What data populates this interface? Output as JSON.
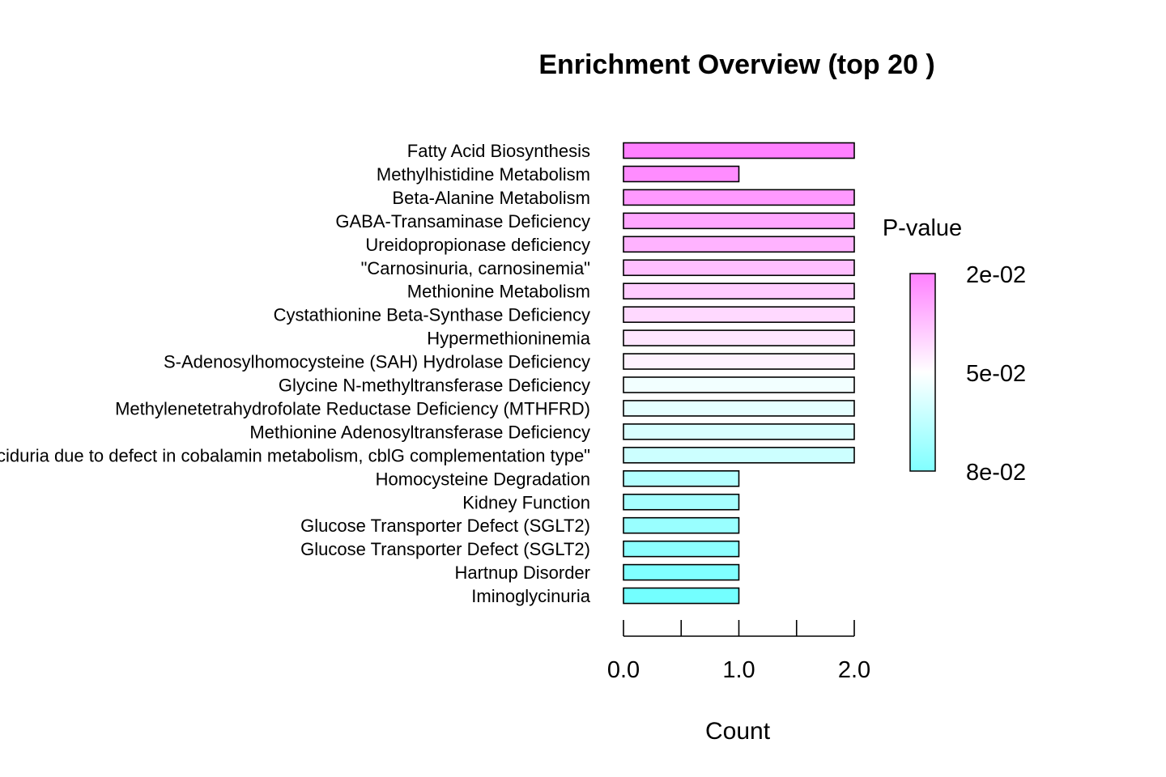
{
  "chart_data": {
    "type": "bar",
    "orientation": "horizontal",
    "title": "Enrichment Overview (top  20 )",
    "xlabel": "Count",
    "ylabel": "",
    "xlim": [
      0,
      2
    ],
    "x_ticks": [
      0,
      0.5,
      1,
      1.5,
      2
    ],
    "x_tick_labels": [
      {
        "value": 0,
        "label": "0.0"
      },
      {
        "value": 1,
        "label": "1.0"
      },
      {
        "value": 2,
        "label": "2.0"
      }
    ],
    "categories": [
      "Fatty Acid Biosynthesis",
      "Methylhistidine Metabolism",
      "Beta-Alanine Metabolism",
      "GABA-Transaminase Deficiency",
      "Ureidopropionase deficiency",
      "\"Carnosinuria, carnosinemia\"",
      "Methionine Metabolism",
      "Cystathionine Beta-Synthase Deficiency",
      "Hypermethioninemia",
      "S-Adenosylhomocysteine (SAH) Hydrolase Deficiency",
      "Glycine N-methyltransferase Deficiency",
      "Methylenetetrahydrofolate Reductase Deficiency (MTHFRD)",
      "Methionine Adenosyltransferase Deficiency",
      "\"Methylmalonic aciduria due to defect in cobalamin metabolism, cblG complementation type\"",
      "Homocysteine Degradation",
      "Kidney Function",
      "Glucose Transporter Defect (SGLT2)",
      "Glucose Transporter Defect (SGLT2)",
      "Hartnup Disorder",
      "Iminoglycinuria"
    ],
    "values": [
      2,
      1,
      2,
      2,
      2,
      2,
      2,
      2,
      2,
      2,
      2,
      2,
      2,
      2,
      1,
      1,
      1,
      1,
      1,
      1
    ],
    "bar_colors": [
      "#ff80ff",
      "#ff8cff",
      "#ff99ff",
      "#ffa6ff",
      "#ffb3ff",
      "#ffbfff",
      "#ffccff",
      "#ffd9ff",
      "#ffe6ff",
      "#fff2ff",
      "#f2ffff",
      "#e6ffff",
      "#d9ffff",
      "#ccffff",
      "#b3ffff",
      "#a6ffff",
      "#99ffff",
      "#8cffff",
      "#80ffff",
      "#73ffff"
    ],
    "legend": {
      "title": "P-value",
      "placement": "right",
      "labels": [
        "2e-02",
        "5e-02",
        "8e-02"
      ],
      "color_high": "#ff80ff",
      "color_mid": "#ffffff",
      "color_low": "#80ffff"
    },
    "grid": false
  }
}
